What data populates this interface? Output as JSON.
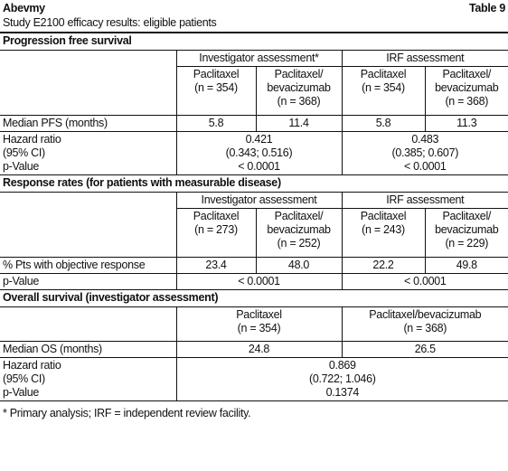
{
  "header": {
    "title": "Abevmy",
    "table_number": "Table 9",
    "subtitle": "Study E2100 efficacy results: eligible patients"
  },
  "pfs": {
    "title": "Progression free survival",
    "groups": [
      "Investigator assessment*",
      "IRF assessment"
    ],
    "arms": [
      [
        "Paclitaxel",
        "(n = 354)"
      ],
      [
        "Paclitaxel/",
        "bevacizumab",
        "(n = 368)"
      ],
      [
        "Paclitaxel",
        "(n = 354)"
      ],
      [
        "Paclitaxel/",
        "bevacizumab",
        "(n = 368)"
      ]
    ],
    "median": {
      "label": "Median PFS (months)",
      "values": [
        "5.8",
        "11.4",
        "5.8",
        "11.3"
      ]
    },
    "hazard": {
      "labels": [
        "Hazard ratio",
        "(95% CI)",
        "p-Value"
      ],
      "values": [
        [
          "0.421",
          "(0.343; 0.516)",
          "< 0.0001"
        ],
        [
          "0.483",
          "(0.385; 0.607)",
          "< 0.0001"
        ]
      ]
    }
  },
  "rr": {
    "title": "Response rates (for patients with measurable disease)",
    "groups": [
      "Investigator assessment",
      "IRF assessment"
    ],
    "arms": [
      [
        "Paclitaxel",
        "(n = 273)"
      ],
      [
        "Paclitaxel/",
        "bevacizumab",
        "(n = 252)"
      ],
      [
        "Paclitaxel",
        "(n = 243)"
      ],
      [
        "Paclitaxel/",
        "bevacizumab",
        "(n = 229)"
      ]
    ],
    "response": {
      "label": "% Pts with objective response",
      "values": [
        "23.4",
        "48.0",
        "22.2",
        "49.8"
      ]
    },
    "pvalue": {
      "label": "p-Value",
      "values": [
        "< 0.0001",
        "< 0.0001"
      ]
    }
  },
  "os": {
    "title": "Overall survival (investigator assessment)",
    "arms": [
      [
        "Paclitaxel",
        "(n = 354)"
      ],
      [
        "Paclitaxel/bevacizumab",
        "(n = 368)"
      ]
    ],
    "median": {
      "label": "Median OS (months)",
      "values": [
        "24.8",
        "26.5"
      ]
    },
    "hazard": {
      "labels": [
        "Hazard ratio",
        "(95% CI)",
        "p-Value"
      ],
      "values": [
        "0.869",
        "(0.722; 1.046)",
        "0.1374"
      ]
    }
  },
  "footnote": "* Primary analysis; IRF = independent review facility."
}
